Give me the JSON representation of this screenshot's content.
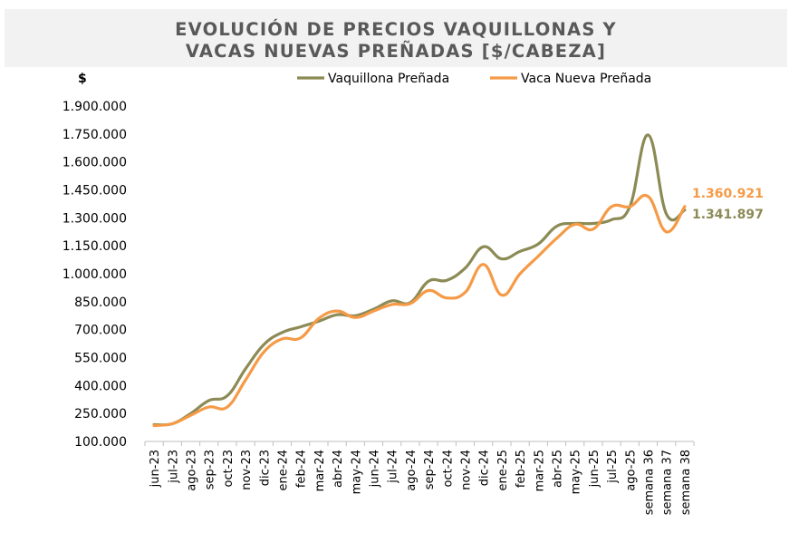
{
  "chart_data": {
    "type": "line",
    "title": "EVOLUCIÓN DE PRECIOS VAQUILLONAS Y VACAS NUEVAS PREÑADAS [$/CABEZA]",
    "title_lines": [
      "EVOLUCIÓN DE PRECIOS VAQUILLONAS Y",
      "VACAS NUEVAS PREÑADAS [$/CABEZA]"
    ],
    "ylabel": "$",
    "xlabel": "",
    "ylim": [
      100000,
      1900000
    ],
    "y_ticks": [
      100000,
      250000,
      400000,
      550000,
      700000,
      850000,
      1000000,
      1150000,
      1300000,
      1450000,
      1600000,
      1750000,
      1900000
    ],
    "y_tick_labels": [
      "100.000",
      "250.000",
      "400.000",
      "550.000",
      "700.000",
      "850.000",
      "1.000.000",
      "1.150.000",
      "1.300.000",
      "1.450.000",
      "1.600.000",
      "1.750.000",
      "1.900.000"
    ],
    "grid": false,
    "legend_position": "top",
    "categories": [
      "jun-23",
      "jul-23",
      "ago-23",
      "sep-23",
      "oct-23",
      "nov-23",
      "dic-23",
      "ene-24",
      "feb-24",
      "mar-24",
      "abr-24",
      "may-24",
      "jun-24",
      "jul-24",
      "ago-24",
      "sep-24",
      "oct-24",
      "nov-24",
      "dic-24",
      "ene-25",
      "feb-25",
      "mar-25",
      "abr-25",
      "may-25",
      "jun-25",
      "jul-25",
      "ago-25",
      "semana 36",
      "semana 37",
      "semana 38"
    ],
    "series": [
      {
        "name": "Vaquillona Preñada",
        "color": "#8c8a55",
        "values": [
          190000,
          195000,
          250000,
          320000,
          345000,
          490000,
          620000,
          685000,
          715000,
          745000,
          780000,
          775000,
          810000,
          855000,
          845000,
          960000,
          965000,
          1030000,
          1145000,
          1080000,
          1120000,
          1160000,
          1255000,
          1270000,
          1270000,
          1290000,
          1360000,
          1745000,
          1320000,
          1341897
        ],
        "end_label": "1.341.897"
      },
      {
        "name": "Vaca Nueva Preñada",
        "color": "#f59a46",
        "values": [
          185000,
          195000,
          240000,
          285000,
          285000,
          430000,
          580000,
          650000,
          655000,
          760000,
          800000,
          765000,
          800000,
          835000,
          840000,
          910000,
          870000,
          900000,
          1050000,
          885000,
          1000000,
          1095000,
          1190000,
          1265000,
          1240000,
          1360000,
          1360000,
          1415000,
          1225000,
          1360921
        ],
        "end_label": "1.360.921"
      }
    ]
  }
}
